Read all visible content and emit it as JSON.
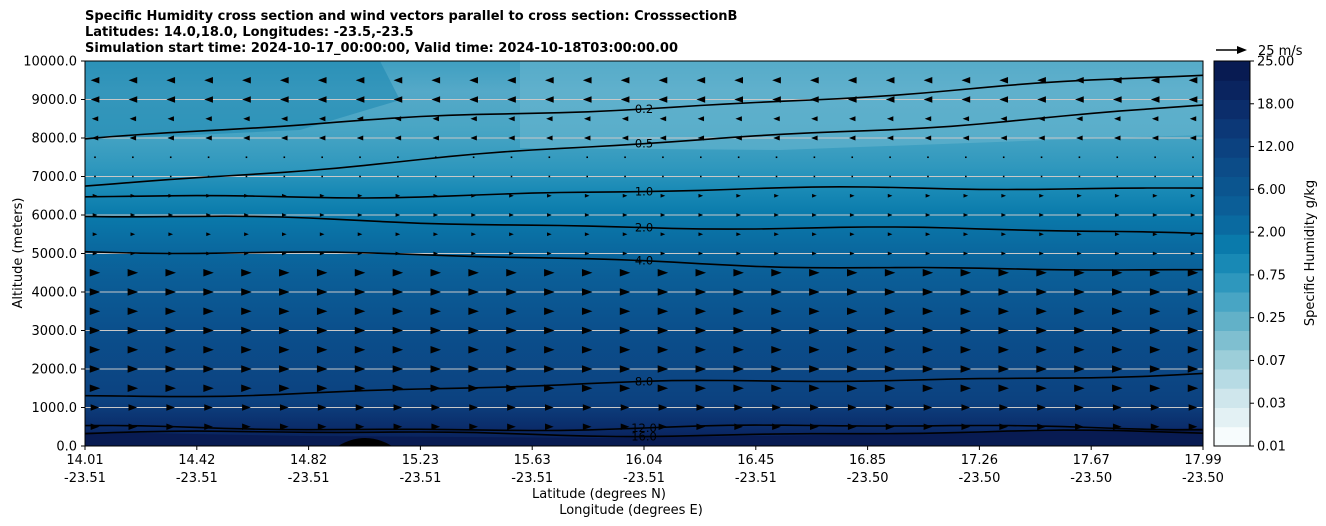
{
  "chart_data": {
    "type": "heatmap",
    "title_lines": [
      "Specific Humidity cross section and wind vectors parallel to cross section: CrosssectionB",
      "Latitudes: 14.0,18.0, Longitudes: -23.5,-23.5",
      "Simulation start time: 2024-10-17_00:00:00, Valid time: 2024-10-18T03:00:00.00"
    ],
    "ylabel": "Altitude (meters)",
    "xlabel_lines": [
      "Latitude (degrees N)",
      "Longitude (degrees E)"
    ],
    "ylim": [
      0,
      10000
    ],
    "y_ticks": [
      0,
      1000,
      2000,
      3000,
      4000,
      5000,
      6000,
      7000,
      8000,
      9000,
      10000
    ],
    "y_tick_labels": [
      "0.0",
      "1000.0",
      "2000.0",
      "3000.0",
      "4000.0",
      "5000.0",
      "6000.0",
      "7000.0",
      "8000.0",
      "9000.0",
      "10000.0"
    ],
    "x_ticks": [
      {
        "lat": "14.01",
        "lon": "-23.51"
      },
      {
        "lat": "14.42",
        "lon": "-23.51"
      },
      {
        "lat": "14.82",
        "lon": "-23.51"
      },
      {
        "lat": "15.23",
        "lon": "-23.51"
      },
      {
        "lat": "15.63",
        "lon": "-23.51"
      },
      {
        "lat": "16.04",
        "lon": "-23.51"
      },
      {
        "lat": "16.45",
        "lon": "-23.51"
      },
      {
        "lat": "16.85",
        "lon": "-23.50"
      },
      {
        "lat": "17.26",
        "lon": "-23.50"
      },
      {
        "lat": "17.67",
        "lon": "-23.50"
      },
      {
        "lat": "17.99",
        "lon": "-23.50"
      }
    ],
    "grid": "horizontal",
    "colorbar": {
      "label": "Specific Humidity g/kg",
      "tick_labels": [
        "0.01",
        "0.03",
        "0.07",
        "0.25",
        "0.75",
        "2.00",
        "6.00",
        "12.00",
        "18.00",
        "25.00"
      ],
      "colors": [
        "#f7fcfd",
        "#e3f1f4",
        "#cfe6ec",
        "#b7dbe4",
        "#9cced9",
        "#7fbfd0",
        "#62b1c8",
        "#48a5c4",
        "#2e97bd",
        "#1889b5",
        "#0a7aab",
        "#0a6aa0",
        "#0b5e97",
        "#0b558f",
        "#0c4c88",
        "#0c4280",
        "#0c3877",
        "#0b2d6b",
        "#0a245f",
        "#081b52"
      ]
    },
    "contour_levels": [
      {
        "value": 16.0,
        "label": "16.0",
        "alt_left": 320,
        "alt_right": 330
      },
      {
        "value": 12.0,
        "label": "12.0",
        "alt_left": 450,
        "alt_right": 500
      },
      {
        "value": 8.0,
        "label": "8.0",
        "alt_left": 1300,
        "alt_right": 1900
      },
      {
        "value": 4.0,
        "label": "4.0",
        "alt_left": 5100,
        "alt_right": 4500
      },
      {
        "value": 2.0,
        "label": "2.0",
        "alt_left": 5950,
        "alt_right": 5500
      },
      {
        "value": 1.0,
        "label": "1.0",
        "alt_left": 6450,
        "alt_right": 6750
      },
      {
        "value": 0.5,
        "label": "0.5",
        "alt_left": 6800,
        "alt_right": 8850
      },
      {
        "value": 0.2,
        "label": "0.2",
        "alt_left": 8000,
        "alt_right": 9600
      }
    ],
    "wind_reference": {
      "label": "25 m/s"
    }
  }
}
